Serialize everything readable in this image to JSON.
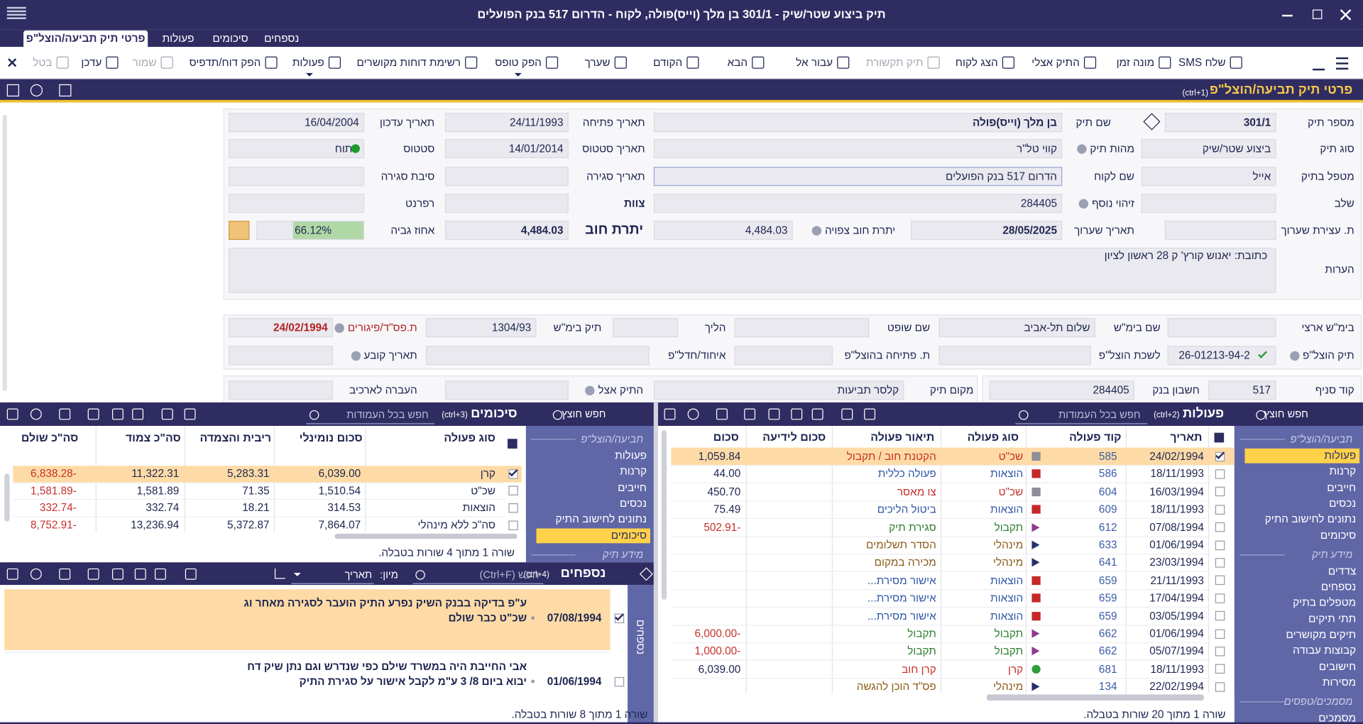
{
  "window": {
    "title": "תיק ביצוע שטר/שיק - 301/1 בן מלך (וייס)פולה, לקוח - הדרום 517 בנק הפועלים"
  },
  "tabs": [
    "פרטי תיק תביעה/הוצל\"פ",
    "פעולות",
    "סיכומים",
    "נספחים"
  ],
  "toolbar": [
    {
      "label": "שלח SMS"
    },
    {
      "label": "מונה זמן"
    },
    {
      "label": "התיק אצלי"
    },
    {
      "label": "הצג לקוח"
    },
    {
      "label": "תיק תקשורת",
      "disabled": true
    },
    {
      "label": "עבור אל"
    },
    {
      "label": "הבא"
    },
    {
      "label": "הקודם"
    },
    {
      "label": "שערך"
    },
    {
      "label": "הפק טופס"
    },
    {
      "label": "רשימת דוחות מקושרים"
    },
    {
      "label": "פעולות"
    },
    {
      "label": "הפק דוח/תדפיס"
    },
    {
      "label": "שמור",
      "disabled": true
    },
    {
      "label": "עדכן"
    },
    {
      "label": "בטל",
      "disabled": true
    }
  ],
  "section": {
    "title": "פרטי תיק תביעה/הוצל\"פ",
    "shortcut": "(ctrl+1)"
  },
  "fields": [
    {
      "label": "מספר תיק",
      "value": "301/1"
    },
    {
      "label": "שם תיק",
      "value": "בן מלך (וייס)פולה"
    },
    {
      "label": "תאריך פתיחה",
      "value": "24/11/1993"
    },
    {
      "label": "תאריך עדכון",
      "value": "16/04/2004"
    },
    {
      "label": "סוג תיק",
      "value": "ביצוע שטר/שיק"
    },
    {
      "label": "מהות תיק",
      "value": "קווי טל\"ר"
    },
    {
      "label": "תאריך סטטוס",
      "value": "14/01/2014"
    },
    {
      "label": "סטטוס",
      "value": "פתוח"
    },
    {
      "label": "מטפל בתיק",
      "value": "אייל"
    },
    {
      "label": "שם לקוח",
      "value": "הדרום 517 בנק הפועלים"
    },
    {
      "label": "תאריך סגירה"
    },
    {
      "label": "סיבת סגירה"
    },
    {
      "label": "שלב"
    },
    {
      "label": "זיהוי נוסף",
      "value": "284405"
    },
    {
      "label": "צוות"
    },
    {
      "label": "רפרנט"
    },
    {
      "label": "ת. עצירת שערוך"
    },
    {
      "label": "תאריך שערוך",
      "value": "28/05/2025"
    },
    {
      "label": "יתרת חוב צפויה",
      "value": "4,484.03"
    },
    {
      "label": "יתרת חוב",
      "value": "4,484.03"
    },
    {
      "label": "אחוז גביה",
      "value": "66.12%"
    },
    {
      "label": "בימ\"ש ארצי"
    },
    {
      "label": "שם בימ\"ש",
      "value": "שלום תל-אביב"
    },
    {
      "label": "שם שופט"
    },
    {
      "label": "הליך"
    },
    {
      "label": "תיק בימ\"ש",
      "value": "1304/93"
    },
    {
      "label": "ת.פס\"ד/פיגורים",
      "value": "24/02/1994"
    },
    {
      "label": "תיק הוצל\"פ",
      "value": "26-01213-94-2"
    },
    {
      "label": "לשכת הוצל\"פ"
    },
    {
      "label": "ת. פתיחה בהוצל\"פ"
    },
    {
      "label": "איחוד/חדל\"פ"
    },
    {
      "label": "תאריך קובע"
    },
    {
      "label": "קוד סניף",
      "value": "517"
    },
    {
      "label": "חשבון בנק",
      "value": "284405"
    },
    {
      "label": "מקום תיק",
      "value": "קלסר תביעות"
    },
    {
      "label": "התיק אצל"
    },
    {
      "label": "העברה לארכיב"
    }
  ],
  "notes": {
    "label": "הערות",
    "value": "כתובת: יאנוש קורץ' ק 28 ראשון לציון"
  },
  "actions": {
    "title": "פעולות",
    "shortcut": "(ctrl+2)",
    "search": "חפש בכל העמודות",
    "tab_search": "חפש חוצץ",
    "nav": [
      {
        "group": "תביעה/הוצל\"פ",
        "items": [
          {
            "label": "פעולות",
            "selected": true
          },
          {
            "label": "קרנות"
          },
          {
            "label": "חייבים"
          },
          {
            "label": "נכסים"
          },
          {
            "label": "נתונים לחישוב התיק"
          },
          {
            "label": "סיכומים"
          }
        ]
      },
      {
        "group": "מידע תיק",
        "items": [
          {
            "label": "צדדים"
          },
          {
            "label": "נספחים"
          },
          {
            "label": "מטפלים בתיק"
          },
          {
            "label": "תתי תיקים"
          },
          {
            "label": "תיקים מקושרים"
          },
          {
            "label": "קבוצות עבודה"
          },
          {
            "label": "חישובים"
          },
          {
            "label": "מסירות"
          }
        ]
      },
      {
        "group": "מסמכים/טפסים",
        "items": [
          {
            "label": "מסמכים"
          }
        ]
      }
    ],
    "columns": [
      "תאריך",
      "קוד פעולה",
      "סוג פעולה",
      "תיאור פעולה",
      "סכום לידיעה",
      "סכום"
    ],
    "rows": [
      {
        "date": "24/02/1994",
        "code": "585",
        "type": "שכ\"ט",
        "description": "הקטנת חוב / תקבול",
        "amount": "1,059.84",
        "color": "#c4302b",
        "icon": "square",
        "icon_color": "#8d8d99",
        "selected": true
      },
      {
        "date": "18/11/1993",
        "code": "586",
        "type": "הוצאות",
        "description": "פעולה כללית",
        "amount": "44.00",
        "color": "#2f56a6",
        "icon": "square",
        "icon_color": "#c62828"
      },
      {
        "date": "16/03/1994",
        "code": "604",
        "type": "שכ\"ט",
        "description": "צו מאסר",
        "amount": "450.70",
        "color": "#c4302b",
        "icon": "square",
        "icon_color": "#8d8d99"
      },
      {
        "date": "18/11/1993",
        "code": "609",
        "type": "הוצאות",
        "description": "ביטול הליכים",
        "amount": "75.49",
        "color": "#2f56a6",
        "icon": "square",
        "icon_color": "#c62828"
      },
      {
        "date": "07/08/1994",
        "code": "612",
        "type": "תקבול",
        "description": "סגירת תיק",
        "amount": "-502.91",
        "color": "#2e7d32",
        "icon": "triangle",
        "icon_color": "#8e3a8e"
      },
      {
        "date": "01/06/1994",
        "code": "633",
        "type": "מינהלי",
        "description": "הסדר תשלומים",
        "color": "#8b5a14",
        "icon": "triangle",
        "icon_color": "#25306b"
      },
      {
        "date": "23/03/1994",
        "code": "641",
        "type": "מינהלי",
        "description": "מכירה במקום",
        "color": "#8b5a14",
        "icon": "triangle",
        "icon_color": "#25306b"
      },
      {
        "date": "21/11/1993",
        "code": "659",
        "type": "הוצאות",
        "description": "אישור מסירת...",
        "color": "#2f56a6",
        "icon": "square",
        "icon_color": "#c62828"
      },
      {
        "date": "17/04/1994",
        "code": "659",
        "type": "הוצאות",
        "description": "אישור מסירת...",
        "color": "#2f56a6",
        "icon": "square",
        "icon_color": "#c62828"
      },
      {
        "date": "03/05/1994",
        "code": "659",
        "type": "הוצאות",
        "description": "אישור מסירת...",
        "color": "#2f56a6",
        "icon": "square",
        "icon_color": "#c62828"
      },
      {
        "date": "01/06/1994",
        "code": "662",
        "type": "תקבול",
        "description": "תקבול",
        "amount": "-6,000.00",
        "color": "#2e7d32",
        "icon": "triangle",
        "icon_color": "#8e3a8e"
      },
      {
        "date": "05/07/1994",
        "code": "662",
        "type": "תקבול",
        "description": "תקבול",
        "amount": "-1,000.00",
        "color": "#2e7d32",
        "icon": "triangle",
        "icon_color": "#8e3a8e"
      },
      {
        "date": "18/11/1993",
        "code": "681",
        "type": "קרן",
        "description": "קרן חוב",
        "amount": "6,039.00",
        "color": "#c4302b",
        "icon": "circle",
        "icon_color": "#2e9d3a"
      },
      {
        "date": "22/02/1994",
        "code": "134",
        "type": "מינהלי",
        "description": "פס\"ד הוכן להגשה",
        "color": "#8b5a14",
        "icon": "triangle",
        "icon_color": "#25306b"
      }
    ],
    "footer": "שורה 1 מתוך 20 שורות בטבלה."
  },
  "summaries": {
    "title": "סיכומים",
    "shortcut": "(ctrl+3)",
    "search": "חפש בכל העמודות",
    "tab_search": "חפש חוצץ",
    "nav": [
      {
        "group": "תביעה/הוצל\"פ",
        "items": [
          {
            "label": "פעולות"
          },
          {
            "label": "קרנות"
          },
          {
            "label": "חייבים"
          },
          {
            "label": "נכסים"
          },
          {
            "label": "נתונים לחישוב התיק"
          },
          {
            "label": "סיכומים",
            "selected": true
          }
        ]
      },
      {
        "group": "מידע תיק",
        "items": []
      }
    ],
    "columns": [
      "סוג פעולה",
      "סכום נומינלי",
      "ריבית והצמדה",
      "סה\"כ צמוד",
      "סה\"כ שולם"
    ],
    "rows": [
      {
        "cells": [
          "קרן",
          "6,039.00",
          "5,283.31",
          "11,322.31",
          "-6,838.28"
        ],
        "selected": true
      },
      {
        "cells": [
          "שכ\"ט",
          "1,510.54",
          "71.35",
          "1,581.89",
          "-1,581.89"
        ]
      },
      {
        "cells": [
          "הוצאות",
          "314.53",
          "18.21",
          "332.74",
          "-332.74"
        ]
      },
      {
        "cells": [
          "סה\"כ ללא מינהלי",
          "7,864.07",
          "5,372.87",
          "13,236.94",
          "-8,752.91"
        ]
      }
    ],
    "footer": "שורה 1 מתוך 4 שורות בטבלה."
  },
  "attachments": {
    "title": "נספחים",
    "shortcut": "(ctrl+4)",
    "search": "חפש (Ctrl+F)",
    "sort_label": "מיון:",
    "sort_value": "תאריך",
    "tab": "נספחים",
    "rows": [
      {
        "date": "07/08/1994",
        "lines": [
          "ע\"פ בדיקה בבנק השיק נפרע התיק הועבר לסגירה מאחר וג",
          "שכ\"ט כבר שולם"
        ],
        "selected": true
      },
      {
        "date": "01/06/1994",
        "lines": [
          "אבי החייבת היה במשרד שילם כפי שנדרש וגם נתן שיק דח",
          "יבוא ביום 8/ 3 ע\"מ לקבל אישור על סגירת התיק"
        ]
      }
    ],
    "footer": "שורה 1 מתוך 8 שורות בטבלה."
  }
}
